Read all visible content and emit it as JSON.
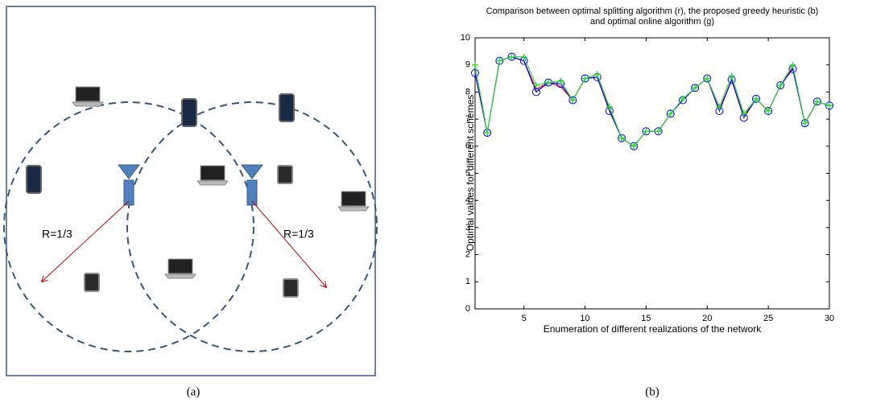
{
  "diagram": {
    "labels": [
      "R=1/3",
      "R=1/3"
    ],
    "caption": "(a)"
  },
  "caption": "(b)",
  "chart_data": {
    "type": "line",
    "title": "Comparison between optimal splitting algorithm (r), the proposed greedy heuristic (b)",
    "subtitle": "and optimal online algorithm (g)",
    "x_label": "Enumeration of different realizations of the network",
    "y_label": "Optimal values for different schemes",
    "x": [
      1,
      2,
      3,
      4,
      5,
      6,
      7,
      8,
      9,
      10,
      11,
      12,
      13,
      14,
      15,
      16,
      17,
      18,
      19,
      20,
      21,
      22,
      23,
      24,
      25,
      26,
      27,
      28,
      29,
      30
    ],
    "series": [
      {
        "color": "#ff0000",
        "marker": "none",
        "values": [
          8.7,
          6.5,
          9.15,
          9.3,
          9.15,
          8.1,
          8.35,
          8.2,
          7.7,
          8.5,
          8.55,
          7.35,
          6.3,
          6.0,
          6.55,
          6.55,
          7.2,
          7.7,
          8.15,
          8.5,
          7.35,
          8.45,
          7.1,
          7.75,
          7.3,
          8.25,
          8.9,
          6.85,
          7.65,
          7.5
        ]
      },
      {
        "color": "#0000ff",
        "marker": "o",
        "values": [
          8.7,
          6.5,
          9.15,
          9.3,
          9.15,
          8.0,
          8.35,
          8.3,
          7.7,
          8.5,
          8.55,
          7.3,
          6.3,
          6.0,
          6.55,
          6.55,
          7.2,
          7.7,
          8.15,
          8.5,
          7.3,
          8.45,
          7.05,
          7.75,
          7.3,
          8.25,
          8.85,
          6.85,
          7.65,
          7.5
        ]
      },
      {
        "color": "#33dd33",
        "marker": "+",
        "values": [
          9.0,
          6.5,
          9.15,
          9.3,
          9.3,
          8.25,
          8.35,
          8.4,
          7.7,
          8.5,
          8.65,
          7.45,
          6.3,
          6.0,
          6.55,
          6.55,
          7.2,
          7.75,
          8.15,
          8.5,
          7.45,
          8.6,
          7.2,
          7.75,
          7.3,
          8.25,
          9.0,
          6.85,
          7.65,
          7.5
        ]
      }
    ],
    "xlim": [
      1,
      30
    ],
    "xticks": [
      5,
      10,
      15,
      20,
      25,
      30
    ],
    "ylim": [
      0,
      10
    ],
    "yticks": [
      0,
      1,
      2,
      3,
      4,
      5,
      6,
      7,
      8,
      9,
      10
    ],
    "grid": false
  }
}
